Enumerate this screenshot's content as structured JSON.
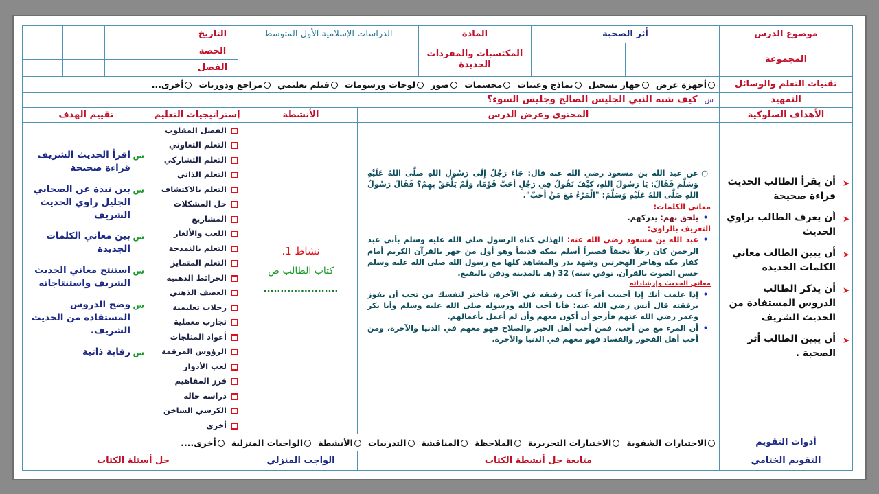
{
  "header": {
    "lesson_topic_label": "موضوع الدرس",
    "lesson_title": "أثر الصحبة",
    "subject_label": "المادة",
    "subject_value": "الدراسات الإسلامية الأول المتوسط",
    "date_label": "التاريخ",
    "period_label": "الحصة",
    "class_label": "الفصل",
    "group_label": "المجموعة",
    "new_vocab_label": "المكتسبات والمفردات الجديدة"
  },
  "aids": {
    "label": "تقنيات التعلم والوسائل",
    "options": [
      "أجهزة عرض",
      "جهاز تسجيل",
      "نماذج وعينات",
      "مجسمات",
      "صور",
      "لوحات ورسومات",
      "فيلم تعليمي",
      "مراجع ودوريات",
      "أخرى..."
    ]
  },
  "intro": {
    "label": "التمهيد",
    "marker": "س",
    "question": "كيف شبه النبي الجليس الصالح وجليس السوء؟"
  },
  "columns": {
    "objectives": "الأهداف السلوكية",
    "content": "المحتوى وعرض الدرس",
    "activities": "الأنشطة",
    "strategies": "إستراتيجيات التعليم",
    "evaluation": "تقييم الهدف"
  },
  "objectives": [
    "أن يقرأ الطالب الحديث قراءة صحيحة",
    "أن يعرف الطالب براوي الحديث",
    "أن يبين الطالب معاني الكلمات الجديدة",
    "أن يذكر الطالب الدروس المستفادة من الحديث الشريف",
    "أن يبين الطالب أثر الصحبة ."
  ],
  "content": {
    "hadith": "عن عبد الله بن مسعود رضي الله عنه قال: جَاءَ رَجُلٌ إِلَى رَسُولِ اللهِ صَلَّى اللهُ عَلَيْهِ وَسَلَّمَ فَقَالَ: يَا رَسُولَ اللهِ، كَيْفَ تَقُولُ فِي رَجُلٍ أَحَبَّ قَوْمًا، وَلَمْ يَلْحَقْ بِهِمْ؟ فَقَالَ رَسُولُ اللهِ صَلَّى اللهُ عَلَيْهِ وَسَلَّمَ: \"الْمَرْءُ مَعَ مَنْ أَحَبَّ\".",
    "words_heading": "معاني الكلمات:",
    "word_term": "يلحق بهم:",
    "word_meaning": "يدركهم.",
    "narrator_heading": "التعريف بالراوي:",
    "narrator_name": "عبد الله بن مسعود رضي الله عنه:",
    "narrator_text": "الهذلي كناه الرسول صلى الله عليه وسلم بأبي عبد الرحمن كان رجلاً نحيفاً قصيراً أسلم بمكة قديماً وهو أول من جهر بالقرآن الكريم أمام كفار مكة وهاجر الهجرتين وشهد بدر والمشاهد كلها مع رسول الله صلى الله عليه وسلم حسن الصوت بالقرآن. توفي سنة) 32 (هـ بالمدينة ودفن بالبقيع.",
    "meanings_heading": "معاني الحديث وإرشاداته",
    "meanings": [
      "إذا علمت أنك إذا أحببت أمرءاً كنت رفيقه في الآخرة، فأختر لنفسك من تحب أن يفوز برفقته قال أنس رضي الله عنه: فأنا أحب الله ورسوله صلى الله عليه وسلم وأبا بكر وعمر رضي الله عنهم فأرجو أن أكون معهم وأن لم أعمل بأعمالهم.",
      "أن المرء مع من أحب، فمن أحب أهل الخير والصلاح فهو معهم في الدنيا والآخرة، ومن أحب أهل الفجور والفساد فهو معهم في الدنيا والآخرة."
    ]
  },
  "activities": {
    "title": "نشاط 1.",
    "book": "كتاب الطالب ص",
    "dots": "......................"
  },
  "strategies": [
    "الفصل المقلوب",
    "التعلم التعاوني",
    "التعلم التشاركي",
    "التعلم الذاتي",
    "التعلم بالاكتشاف",
    "حل المشكلات",
    "المشاريع",
    "اللعب والألغاز",
    "التعلم بالنمذجة",
    "التعلم المتمايز",
    "الخرائط الذهنية",
    "العصف الذهني",
    "رحلات تعليمية",
    "تجارب معملية",
    "أعواد المثلجات",
    "الرؤوس المرقمة",
    "لعب الأدوار",
    "فرز المفاهيم",
    "دراسة حالة",
    "الكرسي الساخن",
    "أخرى"
  ],
  "evaluation": {
    "marker": "س",
    "items": [
      "اقرأ الحديث الشريف قراءة صحيحة",
      "بين نبذة عن الصحابي الجليل راوي الحديث الشريف",
      "بين معاني الكلمات الجديدة",
      "استنتج معاني الحديث الشريف واستنتاجاته",
      "وضح الدروس المستفادة من الحديث الشريف.",
      "رقابة ذاتية"
    ]
  },
  "tools": {
    "label": "أدوات التقويم",
    "options": [
      "الاختبارات الشفوية",
      "الاختبارات التحريرية",
      "الملاحظة",
      "المناقشة",
      "التدريبات",
      "الأنشطة",
      "الواجبات المنزلية",
      "أخرى...."
    ]
  },
  "final": {
    "label": "التقويم الختامي",
    "follow": "متابعة حل أنشطة الكتاب",
    "homework_label": "الواجب المنزلي",
    "book_questions": "حل أسئلة الكتاب"
  },
  "colors": {
    "label": "#c0102a",
    "border": "#4f93b4",
    "title": "#1c2a85",
    "activity": "#1a9a2a"
  }
}
